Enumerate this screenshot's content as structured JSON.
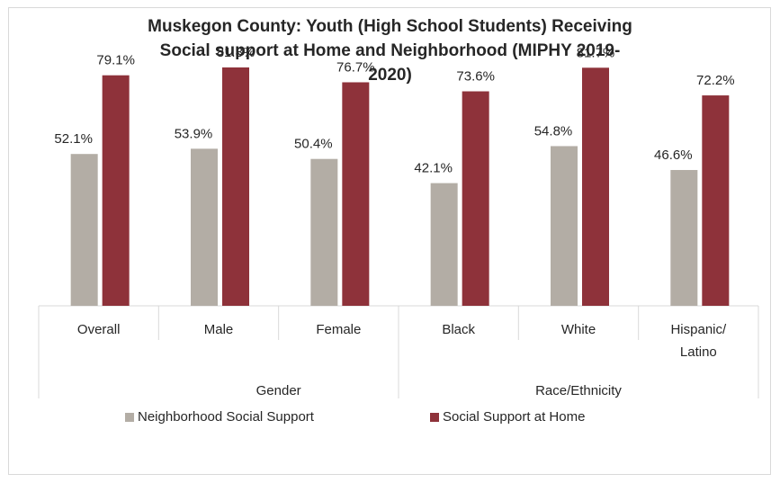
{
  "chart_data": {
    "type": "bar",
    "title_lines": [
      "Muskegon County: Youth (High School Students) Receiving",
      "Social support at Home and Neighborhood (MIPHY 2019-",
      "2020)"
    ],
    "categories": [
      "Overall",
      "Male",
      "Female",
      "Black",
      "White",
      "Hispanic/ Latino"
    ],
    "category_lines": [
      [
        "Overall"
      ],
      [
        "Male"
      ],
      [
        "Female"
      ],
      [
        "Black"
      ],
      [
        "White"
      ],
      [
        "Hispanic/",
        "Latino"
      ]
    ],
    "groups": [
      {
        "label": "",
        "categories": [
          "Overall"
        ]
      },
      {
        "label": "Gender",
        "categories": [
          "Male",
          "Female"
        ]
      },
      {
        "label": "Race/Ethnicity",
        "categories": [
          "Black",
          "White",
          "Hispanic/ Latino"
        ]
      }
    ],
    "series": [
      {
        "name": "Neighborhood Social Support",
        "color": "#b3ada5",
        "values": [
          52.1,
          53.9,
          50.4,
          42.1,
          54.8,
          46.6
        ],
        "labels": [
          "52.1%",
          "53.9%",
          "50.4%",
          "42.1%",
          "54.8%",
          "46.6%"
        ]
      },
      {
        "name": "Social Support at Home",
        "color": "#8e323a",
        "values": [
          79.1,
          81.8,
          76.7,
          73.6,
          81.7,
          72.2
        ],
        "labels": [
          "79.1%",
          "81.8%",
          "76.7%",
          "73.6%",
          "81.7%",
          "72.2%"
        ]
      }
    ],
    "ylim": [
      0,
      100
    ],
    "grid": false,
    "legend_position": "bottom"
  }
}
